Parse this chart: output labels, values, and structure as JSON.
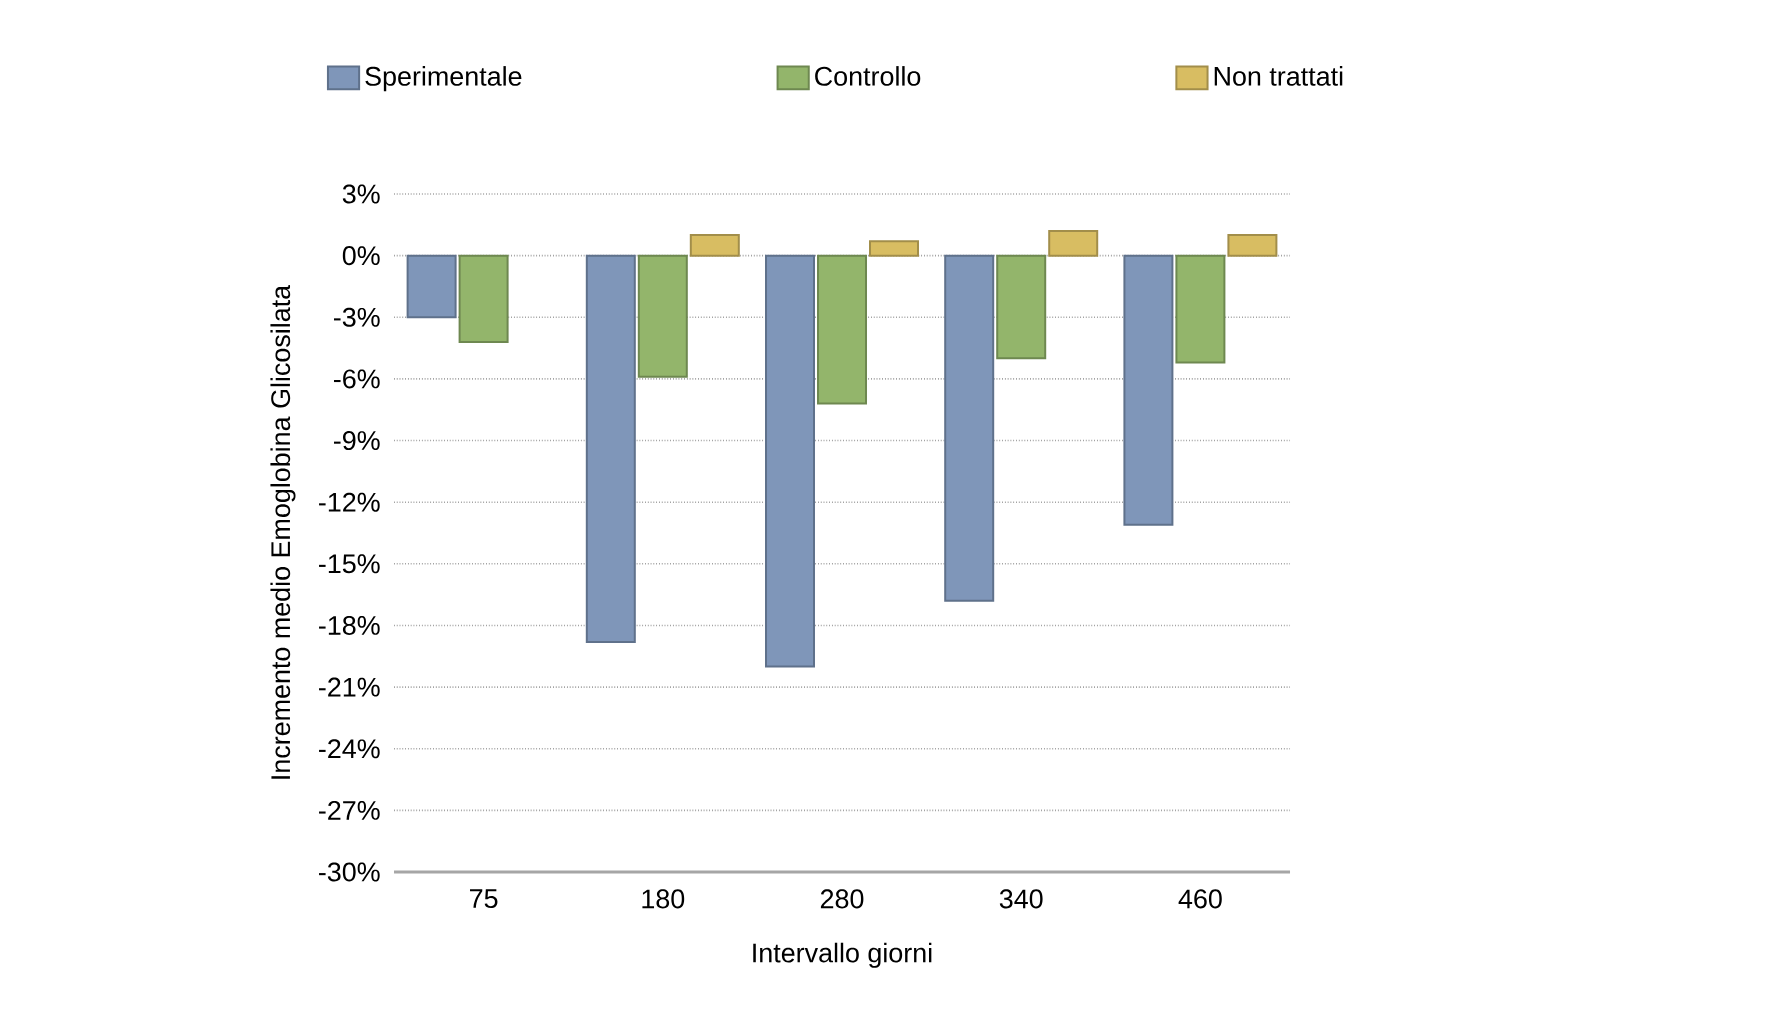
{
  "chart_data": {
    "type": "bar",
    "xlabel": "Intervallo giorni",
    "ylabel": "Incremento medio Emoglobina Glicosilata",
    "categories": [
      "75",
      "180",
      "280",
      "340",
      "460"
    ],
    "series": [
      {
        "name": "Sperimentale",
        "color": "#7f96b9",
        "values": [
          -3.0,
          -18.8,
          -20.0,
          -16.8,
          -13.1
        ]
      },
      {
        "name": "Controllo",
        "color": "#93b56b",
        "values": [
          -4.2,
          -5.9,
          -7.2,
          -5.0,
          -5.2
        ]
      },
      {
        "name": "Non trattati",
        "color": "#d8bd62",
        "values": [
          null,
          1.0,
          0.7,
          1.2,
          1.0
        ]
      }
    ],
    "ylim": [
      -30,
      3
    ],
    "yticks": [
      {
        "value": -30,
        "label": "-30%"
      },
      {
        "value": -27,
        "label": "-27%"
      },
      {
        "value": -24,
        "label": "-24%"
      },
      {
        "value": -21,
        "label": "-21%"
      },
      {
        "value": -18,
        "label": "-18%"
      },
      {
        "value": -15,
        "label": "-15%"
      },
      {
        "value": -12,
        "label": "-12%"
      },
      {
        "value": -9,
        "label": "-9%"
      },
      {
        "value": -6,
        "label": "-6%"
      },
      {
        "value": -3,
        "label": "-3%"
      },
      {
        "value": 0,
        "label": "0%"
      },
      {
        "value": 3,
        "label": "3%"
      }
    ],
    "grid": "y",
    "legend": "top"
  }
}
